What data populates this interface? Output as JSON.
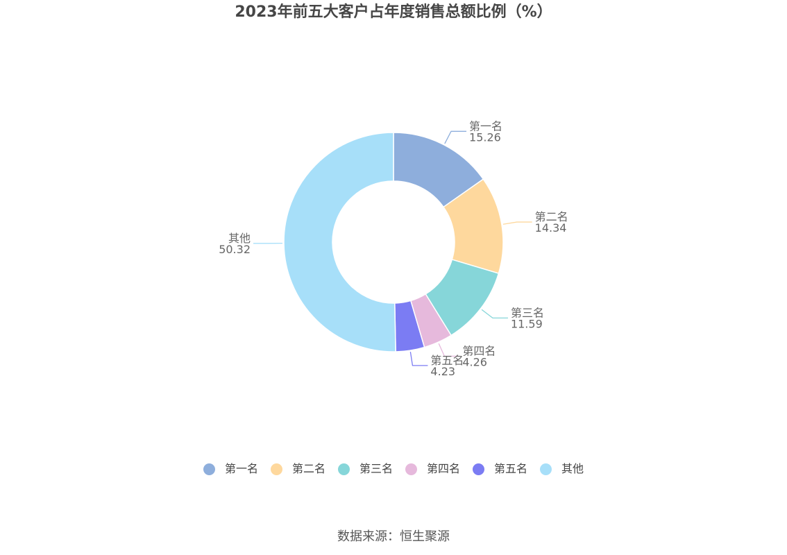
{
  "chart_data": {
    "type": "pie",
    "title": "2023年前五大客户占年度销售总额比例（%）",
    "categories": [
      "第一名",
      "第二名",
      "第三名",
      "第四名",
      "第五名",
      "其他"
    ],
    "values": [
      15.26,
      14.34,
      11.59,
      4.26,
      4.23,
      50.32
    ],
    "value_labels": [
      "15.26",
      "14.34",
      "11.59",
      "4.26",
      "4.23",
      "50.32"
    ],
    "colors": [
      "#8eaedc",
      "#fed89d",
      "#86d6d9",
      "#e6b9dc",
      "#7b7cf3",
      "#a7dff9"
    ],
    "donut": true,
    "legend_position": "bottom"
  },
  "source": "数据来源：恒生聚源"
}
